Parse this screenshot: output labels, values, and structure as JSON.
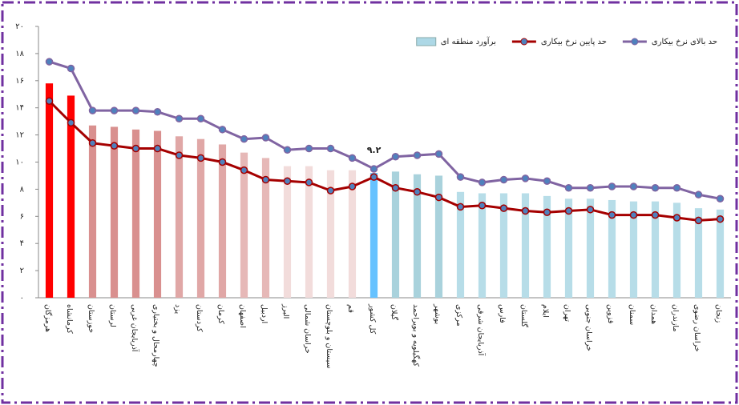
{
  "chart_data": {
    "type": "bar_line",
    "categories": [
      "هرمزگان",
      "کرمانشاه",
      "خوزستان",
      "لرستان",
      "آذربایجان غربی",
      "چهارمحال و بختیاری",
      "یزد",
      "کردستان",
      "کرمان",
      "اصفهان",
      "اردبیل",
      "البرز",
      "خراسان شمالی",
      "سیستان و بلوچستان",
      "قم",
      "کل کشور",
      "گیلان",
      "کهگیلویه و بویراحمد",
      "بوشهر",
      "مرکزی",
      "آذربایجان شرقی",
      "فارس",
      "گلستان",
      "ایلام",
      "تهران",
      "خراسان جنوبی",
      "قزوین",
      "سمنان",
      "همدان",
      "مازندران",
      "خراسان رضوی",
      "زنجان"
    ],
    "series": [
      {
        "name": "برآورد منطقه ای",
        "kind": "bar",
        "color": "#add8e6",
        "colors": [
          "#ff0000",
          "#ff0000",
          "#d9908f",
          "#d9908f",
          "#d9908f",
          "#d9908f",
          "#e0a7a6",
          "#e0a7a6",
          "#e0a7a6",
          "#e6b8b7",
          "#e6b8b7",
          "#f2dcdb",
          "#f2dcdb",
          "#f2dcdb",
          "#f2dcdb",
          "#66c2ff",
          "#a9d2dc",
          "#a9d2dc",
          "#a9d2dc",
          "#b7dde8",
          "#b7dde8",
          "#b7dde8",
          "#b7dde8",
          "#b7dde8",
          "#b7dde8",
          "#b7dde8",
          "#b7dde8",
          "#b7dde8",
          "#b7dde8",
          "#b7dde8",
          "#b7dde8",
          "#b7dde8"
        ],
        "values": [
          15.8,
          14.9,
          12.7,
          12.6,
          12.4,
          12.3,
          11.9,
          11.7,
          11.3,
          10.7,
          10.3,
          9.7,
          9.7,
          9.4,
          9.4,
          9.2,
          9.3,
          9.1,
          9.0,
          7.8,
          7.7,
          7.7,
          7.7,
          7.5,
          7.3,
          7.3,
          7.2,
          7.1,
          7.1,
          7.0,
          6.6,
          6.5
        ],
        "value_labels": [
          null,
          null,
          null,
          null,
          null,
          null,
          null,
          null,
          null,
          null,
          null,
          null,
          null,
          null,
          null,
          "۹.۲",
          null,
          null,
          null,
          null,
          null,
          null,
          null,
          null,
          null,
          null,
          null,
          null,
          null,
          null,
          null,
          null
        ]
      },
      {
        "name": "حد پایین نرخ بیکاری",
        "kind": "line",
        "color": "#a50000",
        "values": [
          14.5,
          12.9,
          11.4,
          11.2,
          11.0,
          11.0,
          10.5,
          10.3,
          10.0,
          9.4,
          8.7,
          8.6,
          8.5,
          7.9,
          8.2,
          8.9,
          8.1,
          7.8,
          7.4,
          6.7,
          6.8,
          6.6,
          6.4,
          6.3,
          6.4,
          6.5,
          6.1,
          6.1,
          6.1,
          5.9,
          5.7,
          5.8
        ]
      },
      {
        "name": "حد بالای نرخ بیکاری",
        "kind": "line",
        "color": "#8064a2",
        "values": [
          17.4,
          16.9,
          13.8,
          13.8,
          13.8,
          13.7,
          13.2,
          13.2,
          12.4,
          11.7,
          11.8,
          10.9,
          11.0,
          11.0,
          10.3,
          9.5,
          10.4,
          10.5,
          10.6,
          8.9,
          8.5,
          8.7,
          8.8,
          8.6,
          8.1,
          8.1,
          8.2,
          8.2,
          8.1,
          8.1,
          7.6,
          7.3
        ]
      }
    ],
    "ylim": [
      0,
      20
    ],
    "yticks": [
      {
        "value": 0,
        "label": "۰"
      },
      {
        "value": 2,
        "label": "۲"
      },
      {
        "value": 4,
        "label": "۴"
      },
      {
        "value": 6,
        "label": "۶"
      },
      {
        "value": 8,
        "label": "۸"
      },
      {
        "value": 10,
        "label": "۱۰"
      },
      {
        "value": 12,
        "label": "۱۲"
      },
      {
        "value": 14,
        "label": "۱۴"
      },
      {
        "value": 16,
        "label": "۱۶"
      },
      {
        "value": 18,
        "label": "۱۸"
      },
      {
        "value": 20,
        "label": "۲۰"
      }
    ],
    "legend": "top-right"
  }
}
